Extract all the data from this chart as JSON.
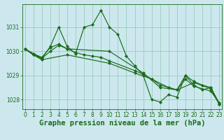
{
  "title": "Graphe pression niveau de la mer (hPa)",
  "background_color": "#cce8ee",
  "grid_color": "#99ccbb",
  "line_color": "#1a6b1a",
  "series": [
    {
      "x": [
        0,
        1,
        2,
        3,
        4,
        5,
        6,
        7,
        8,
        9,
        10,
        11,
        12,
        13,
        14,
        15,
        16,
        17,
        18,
        19,
        20,
        21,
        22,
        23
      ],
      "y": [
        1030.1,
        1029.9,
        1029.7,
        1030.2,
        1031.0,
        1030.2,
        1029.9,
        1031.0,
        1031.1,
        1031.7,
        1031.0,
        1030.7,
        1029.8,
        1029.4,
        1029.0,
        1028.0,
        1027.9,
        1028.2,
        1028.1,
        1029.0,
        1028.6,
        1028.4,
        1028.5,
        1027.8
      ]
    },
    {
      "x": [
        0,
        1,
        2,
        3,
        4,
        5,
        10,
        14,
        16,
        18,
        20,
        22,
        23
      ],
      "y": [
        1030.1,
        1029.9,
        1029.75,
        1030.15,
        1030.3,
        1030.1,
        1030.0,
        1029.1,
        1028.5,
        1028.4,
        1028.7,
        1028.45,
        1027.8
      ]
    },
    {
      "x": [
        0,
        1,
        2,
        3,
        4,
        5,
        6,
        7,
        8,
        9,
        10,
        13,
        14,
        15,
        16,
        17,
        18,
        19,
        20,
        21,
        22,
        23
      ],
      "y": [
        1030.1,
        1029.85,
        1029.7,
        1030.0,
        1030.25,
        1030.1,
        1029.95,
        1029.85,
        1029.8,
        1029.75,
        1029.6,
        1029.2,
        1029.05,
        1028.85,
        1028.6,
        1028.5,
        1028.4,
        1029.0,
        1028.75,
        1028.6,
        1028.5,
        1027.85
      ]
    },
    {
      "x": [
        0,
        1,
        2,
        5,
        10,
        13,
        15,
        17,
        18,
        19,
        20,
        22,
        23
      ],
      "y": [
        1030.1,
        1029.85,
        1029.65,
        1029.85,
        1029.5,
        1029.1,
        1028.85,
        1028.5,
        1028.4,
        1028.85,
        1028.55,
        1028.35,
        1027.85
      ]
    }
  ],
  "xlim": [
    -0.3,
    23.3
  ],
  "ylim": [
    1027.6,
    1031.95
  ],
  "yticks": [
    1028,
    1029,
    1030,
    1031
  ],
  "xticks": [
    0,
    1,
    2,
    3,
    4,
    5,
    6,
    7,
    8,
    9,
    10,
    11,
    12,
    13,
    14,
    15,
    16,
    17,
    18,
    19,
    20,
    21,
    22,
    23
  ],
  "title_fontsize": 7.5,
  "tick_fontsize": 5.5,
  "marker_size": 2.2,
  "line_width": 0.85
}
